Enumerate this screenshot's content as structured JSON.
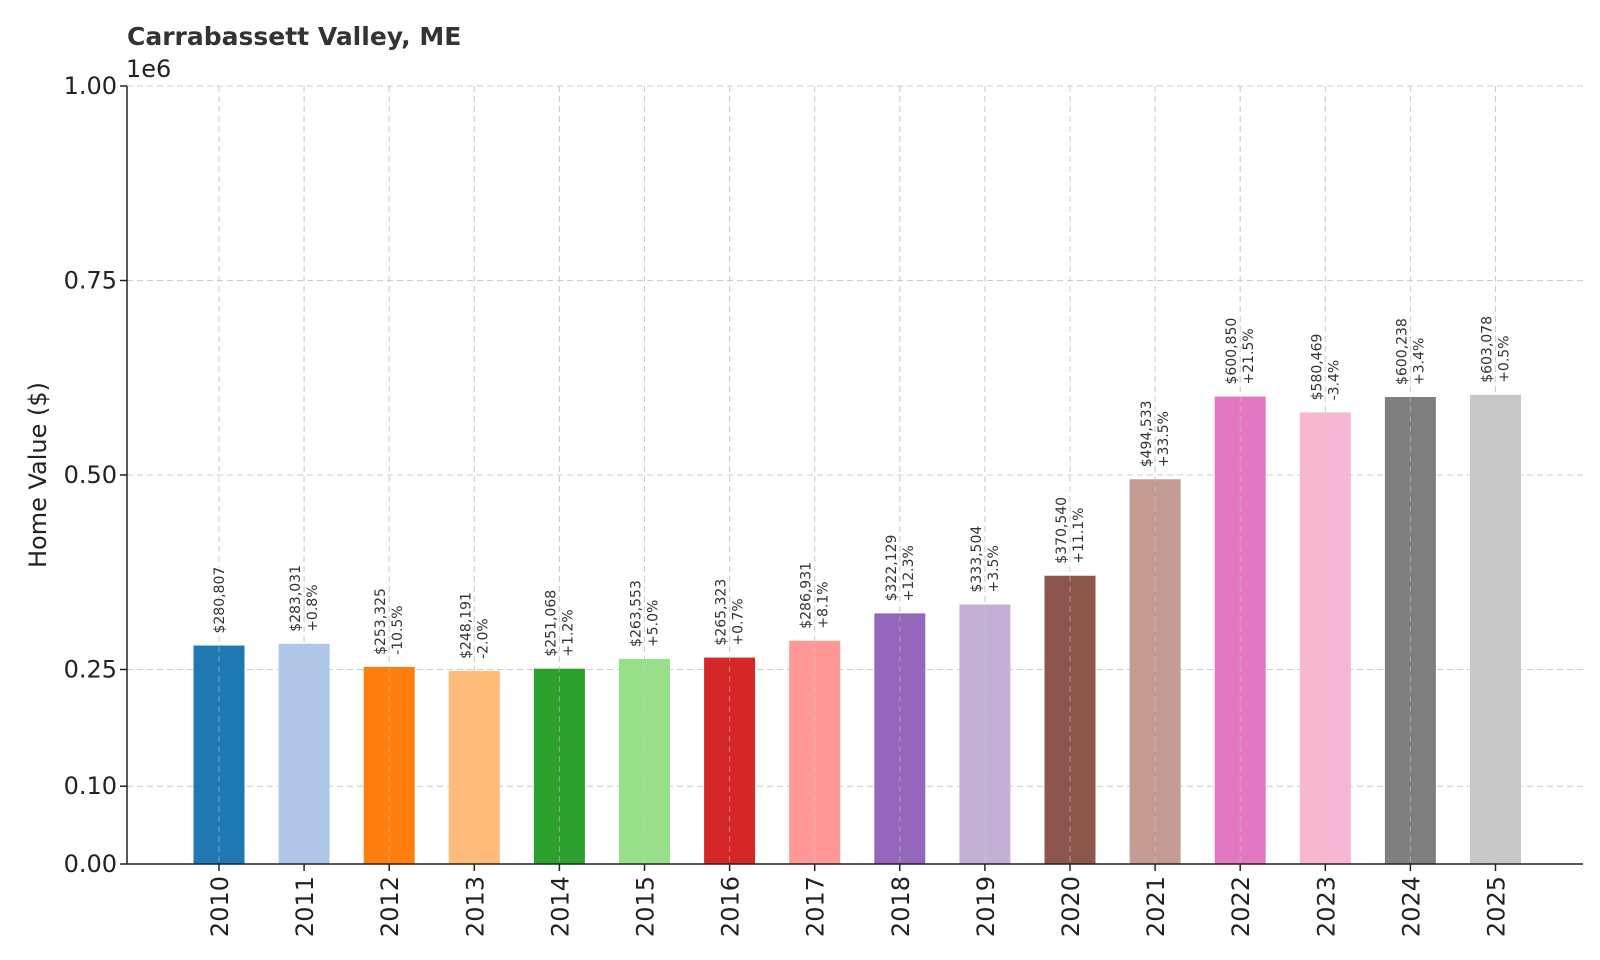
{
  "chart_data": {
    "type": "bar",
    "title": "Carrabassett Valley, ME",
    "ylabel": "Home Value ($)",
    "xlabel": "",
    "y_offset_label": "1e6",
    "ylim": [
      0,
      1000000
    ],
    "yticks": [
      0,
      100000,
      250000,
      500000,
      750000,
      1000000
    ],
    "ytick_labels": [
      "0.00",
      "0.10",
      "0.25",
      "0.50",
      "0.75",
      "1.00"
    ],
    "grid": true,
    "categories": [
      "2010",
      "2011",
      "2012",
      "2013",
      "2014",
      "2015",
      "2016",
      "2017",
      "2018",
      "2019",
      "2020",
      "2021",
      "2022",
      "2023",
      "2024",
      "2025"
    ],
    "values": [
      280807,
      283031,
      253325,
      248191,
      251068,
      263553,
      265323,
      286931,
      322129,
      333504,
      370540,
      494533,
      600850,
      580469,
      600238,
      603078
    ],
    "value_labels": [
      "$280,807",
      "$283,031",
      "$253,325",
      "$248,191",
      "$251,068",
      "$263,553",
      "$265,323",
      "$286,931",
      "$322,129",
      "$333,504",
      "$370,540",
      "$494,533",
      "$600,850",
      "$580,469",
      "$600,238",
      "$603,078"
    ],
    "change_labels": [
      "",
      "+0.8%",
      "-10.5%",
      "-2.0%",
      "+1.2%",
      "+5.0%",
      "+0.7%",
      "+8.1%",
      "+12.3%",
      "+3.5%",
      "+11.1%",
      "+33.5%",
      "+21.5%",
      "-3.4%",
      "+3.4%",
      "+0.5%"
    ],
    "colors": [
      "#1f77b4",
      "#aec7e8",
      "#ff7f0e",
      "#ffbb78",
      "#2ca02c",
      "#98df8a",
      "#d62728",
      "#ff9896",
      "#9467bd",
      "#c5b0d5",
      "#8c564b",
      "#c49c94",
      "#e377c2",
      "#f7b6d2",
      "#7f7f7f",
      "#c7c7c7"
    ]
  }
}
